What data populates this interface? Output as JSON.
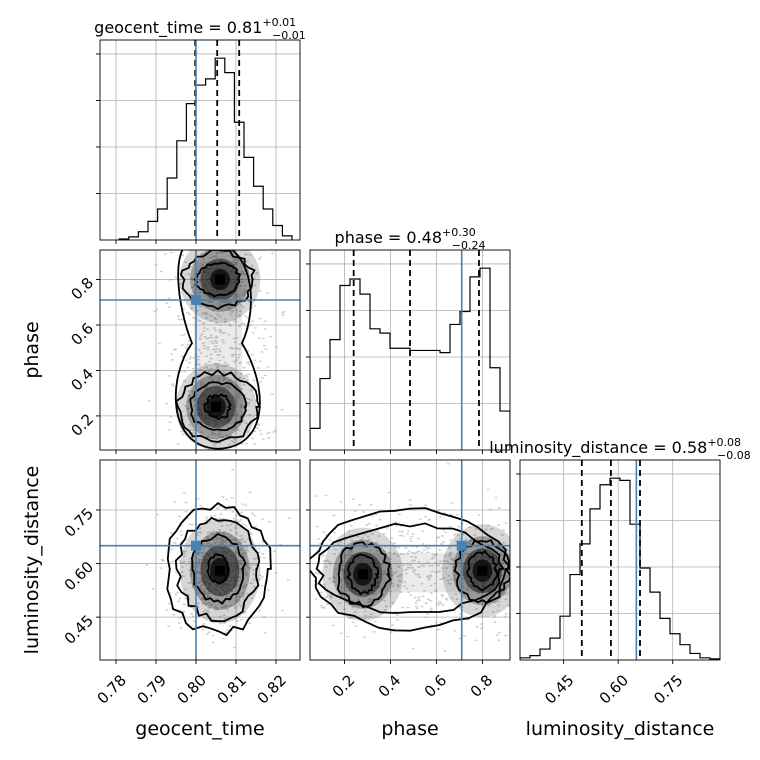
{
  "chart_data": {
    "type": "corner",
    "parameters": [
      "geocent_time",
      "phase",
      "luminosity_distance"
    ],
    "truths": {
      "geocent_time": 0.8,
      "phase": 0.71,
      "luminosity_distance": 0.65
    },
    "colors": {
      "truth": "#4682b4",
      "contour": "#000000",
      "density": "#000000"
    },
    "grid": true,
    "marginals": [
      {
        "parameter": "geocent_time",
        "title": "geocent_time = 0.81",
        "median": 0.81,
        "plus": "+0.01",
        "minus": "−0.01",
        "xlim": [
          0.776,
          0.826
        ],
        "ticks": [
          0.78,
          0.79,
          0.8,
          0.81,
          0.82
        ],
        "tick_labels": [
          "0.78",
          "0.79",
          "0.80",
          "0.81",
          "0.82"
        ],
        "quantiles": [
          0.7998,
          0.8053,
          0.8108
        ],
        "bin_edges": [
          0.7808,
          0.7832,
          0.7856,
          0.788,
          0.7904,
          0.7928,
          0.7952,
          0.7976,
          0.8,
          0.8024,
          0.8048,
          0.8072,
          0.8096,
          0.812,
          0.8144,
          0.8168,
          0.8192,
          0.8216,
          0.824
        ],
        "counts": [
          0.5,
          1.5,
          4,
          9,
          15,
          30,
          48,
          66,
          75,
          78,
          88,
          81,
          57,
          40,
          26,
          15,
          7,
          2
        ]
      },
      {
        "parameter": "phase",
        "title": "phase = 0.48",
        "median": 0.48,
        "plus": "+0.30",
        "minus": "−0.24",
        "xlim": [
          0.05,
          0.92
        ],
        "ticks": [
          0.2,
          0.4,
          0.6,
          0.8
        ],
        "tick_labels": [
          "0.2",
          "0.4",
          "0.6",
          "0.8"
        ],
        "quantiles": [
          0.24,
          0.485,
          0.785
        ],
        "bin_edges": [
          0.05,
          0.0935,
          0.137,
          0.1805,
          0.224,
          0.2675,
          0.311,
          0.3545,
          0.398,
          0.4415,
          0.485,
          0.5285,
          0.572,
          0.6155,
          0.659,
          0.7025,
          0.746,
          0.7895,
          0.833,
          0.8765,
          0.92
        ],
        "counts": [
          10,
          33,
          51,
          76,
          79,
          72,
          56,
          54,
          47,
          47,
          46,
          46,
          46,
          45,
          58,
          64,
          80,
          84,
          38,
          18
        ]
      },
      {
        "parameter": "luminosity_distance",
        "title": "luminosity_distance = 0.58",
        "median": 0.58,
        "plus": "+0.08",
        "minus": "−0.08",
        "xlim": [
          0.33,
          0.88
        ],
        "ticks": [
          0.45,
          0.6,
          0.75
        ],
        "tick_labels": [
          "0.45",
          "0.60",
          "0.75"
        ],
        "quantiles": [
          0.5,
          0.58,
          0.66
        ],
        "bin_edges": [
          0.33,
          0.3575,
          0.385,
          0.4125,
          0.44,
          0.4675,
          0.495,
          0.5225,
          0.55,
          0.5775,
          0.605,
          0.6325,
          0.66,
          0.6875,
          0.715,
          0.7425,
          0.77,
          0.7975,
          0.825,
          0.8525,
          0.88
        ],
        "counts": [
          1,
          2,
          5,
          10,
          20,
          39,
          53,
          69,
          80,
          83,
          82,
          62,
          42,
          31,
          19,
          12,
          7,
          3,
          1,
          0.5
        ]
      }
    ],
    "joint": [
      {
        "x": "geocent_time",
        "y": "phase",
        "ylim": [
          0.05,
          0.93
        ],
        "yticks": [
          0.2,
          0.4,
          0.6,
          0.8
        ],
        "ytick_labels": [
          "0.2",
          "0.4",
          "0.6",
          "0.8"
        ],
        "modes": [
          [
            0.806,
            0.8
          ],
          [
            0.805,
            0.24
          ]
        ]
      },
      {
        "x": "geocent_time",
        "y": "luminosity_distance",
        "ylim": [
          0.33,
          0.89
        ],
        "yticks": [
          0.45,
          0.6,
          0.75
        ],
        "ytick_labels": [
          "0.45",
          "0.60",
          "0.75"
        ],
        "modes": [
          [
            0.806,
            0.58
          ]
        ]
      },
      {
        "x": "phase",
        "y": "luminosity_distance",
        "ylim": [
          0.33,
          0.89
        ],
        "yticks": [
          0.45,
          0.6,
          0.75
        ],
        "ytick_labels": [
          "0.45",
          "0.60",
          "0.75"
        ],
        "modes": [
          [
            0.28,
            0.57
          ],
          [
            0.8,
            0.58
          ]
        ]
      }
    ]
  }
}
